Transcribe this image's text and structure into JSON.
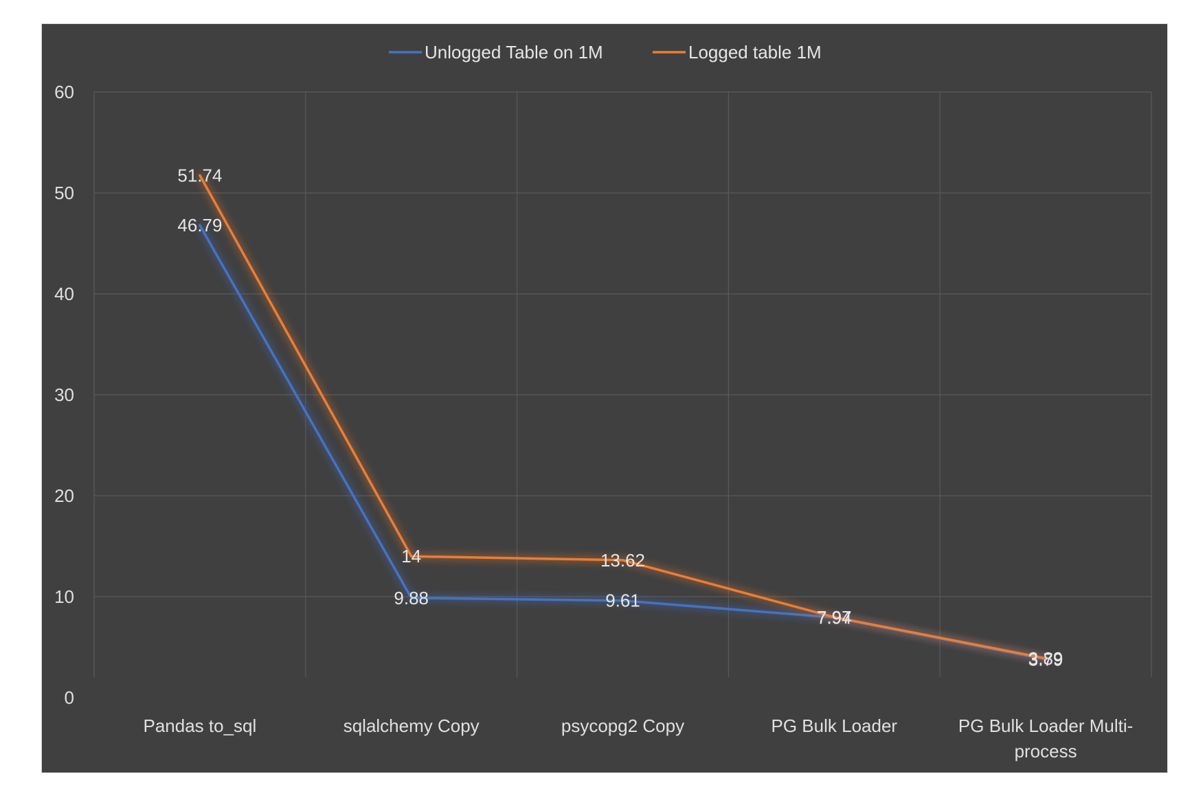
{
  "chart_data": {
    "type": "line",
    "title": "",
    "xlabel": "",
    "ylabel": "",
    "categories": [
      "Pandas to_sql",
      "sqlalchemy Copy",
      "psycopg2 Copy",
      "PG Bulk Loader",
      "PG Bulk Loader Multi-process"
    ],
    "category_lines": [
      [
        "Pandas to_sql"
      ],
      [
        "sqlalchemy Copy"
      ],
      [
        "psycopg2 Copy"
      ],
      [
        "PG Bulk Loader"
      ],
      [
        "PG Bulk Loader Multi-",
        "process"
      ]
    ],
    "ylim": [
      0,
      60
    ],
    "yticks": [
      0,
      10,
      20,
      30,
      40,
      50,
      60
    ],
    "grid": true,
    "legend_position": "top",
    "series": [
      {
        "name": "Unlogged Table on 1M",
        "color": "#4472c4",
        "values": [
          46.79,
          9.88,
          9.61,
          7.94,
          3.79
        ],
        "labels": [
          "46.79",
          "9.88",
          "9.61",
          "7.94",
          "3.79"
        ]
      },
      {
        "name": "Logged table 1M",
        "color": "#ed7d31",
        "values": [
          51.74,
          14,
          13.62,
          7.97,
          3.89
        ],
        "labels": [
          "51.74",
          "14",
          "13.62",
          "7.97",
          "3.89"
        ]
      }
    ]
  }
}
